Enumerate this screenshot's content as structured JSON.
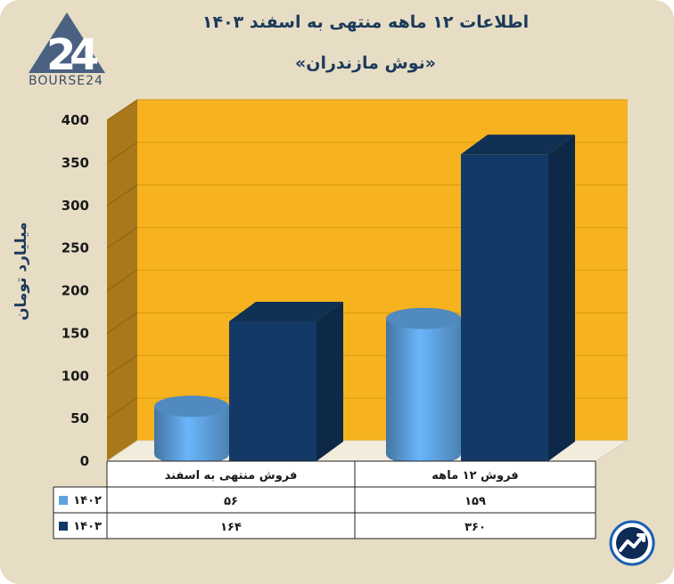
{
  "header": {
    "title": "اطلاعات ۱۲ ماهه منتهی به اسفند ۱۴۰۳",
    "subtitle": "«نوش مازندران»"
  },
  "logo": {
    "text": "BOURSE24",
    "icon": "bourse24-logo-icon"
  },
  "footer": {
    "icon": "bourse24-chart-badge-icon"
  },
  "colors": {
    "background": "#e7ddc4",
    "wall": "#f6b21f",
    "side_wall": "#a8781a",
    "series_1402": "#5fa2e0",
    "series_1403": "#133a66",
    "text": "#1b3a5c"
  },
  "chart_data": {
    "type": "bar",
    "title": "اطلاعات ۱۲ ماهه منتهی به اسفند ۱۴۰۳",
    "subtitle": "«نوش مازندران»",
    "ylabel": "میلیارد تومان",
    "ylim": [
      0,
      400
    ],
    "yticks": [
      "0",
      "50",
      "100",
      "150",
      "200",
      "250",
      "300",
      "350",
      "400"
    ],
    "categories": [
      "فروش منتهی به  اسفند",
      "فروش ۱۲  ماهه"
    ],
    "series": [
      {
        "name": "۱۴۰۲",
        "shape": "cylinder",
        "values": [
          56,
          159
        ],
        "labels": [
          "۵۶",
          "۱۵۹"
        ]
      },
      {
        "name": "۱۴۰۳",
        "shape": "box",
        "values": [
          164,
          360
        ],
        "labels": [
          "۱۶۴",
          "۳۶۰"
        ]
      }
    ],
    "grid": true,
    "legend": "data-table-below"
  }
}
